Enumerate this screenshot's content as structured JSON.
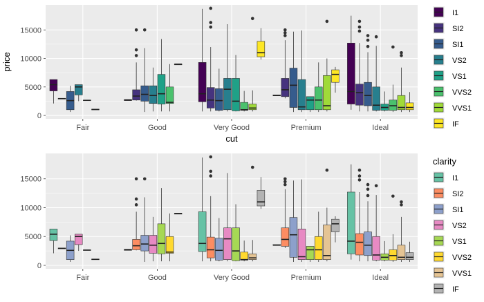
{
  "chart_data": [
    {
      "type": "boxplot",
      "xlabel": "cut",
      "ylabel": "price",
      "categories": [
        "Fair",
        "Good",
        "Very Good",
        "Premium",
        "Ideal"
      ],
      "yticks": [
        0,
        5000,
        10000,
        15000
      ],
      "yticklabels": [
        "0",
        "5000",
        "10000",
        "15000"
      ],
      "ylim": [
        -600,
        19400
      ],
      "grid": true,
      "legend": {
        "title": "",
        "position": "right",
        "entries": [
          "I1",
          "SI2",
          "SI1",
          "VS2",
          "VS1",
          "VVS2",
          "VVS1",
          "IF"
        ]
      },
      "series": [
        {
          "name": "I1",
          "color": "#440154",
          "boxes": [
            {
              "category": "Fair",
              "min": 2100,
              "q1": 4300,
              "median": 5400,
              "q3": 6300,
              "max": 6300,
              "outliers": []
            },
            {
              "category": "Good",
              "min": 2600,
              "q1": 2600,
              "median": 2700,
              "q3": 2800,
              "max": 2800,
              "outliers": []
            },
            {
              "category": "Very Good",
              "min": 700,
              "q1": 2400,
              "median": 3800,
              "q3": 9300,
              "max": 18700,
              "outliers": []
            },
            {
              "category": "Premium",
              "min": 3500,
              "q1": 3500,
              "median": 3500,
              "q3": 3600,
              "max": 3600,
              "outliers": []
            },
            {
              "category": "Ideal",
              "min": 1000,
              "q1": 2000,
              "median": 4200,
              "q3": 12700,
              "max": 17500,
              "outliers": []
            }
          ]
        },
        {
          "name": "SI2",
          "color": "#46337E",
          "boxes": [
            {
              "category": "Fair",
              "min": 2900,
              "q1": 2900,
              "median": 2950,
              "q3": 3000,
              "max": 3000,
              "outliers": []
            },
            {
              "category": "Good",
              "min": 2600,
              "q1": 2700,
              "median": 3400,
              "q3": 4500,
              "max": 9300,
              "outliers": [
                10500,
                11500,
                15000
              ]
            },
            {
              "category": "Very Good",
              "min": 700,
              "q1": 1300,
              "median": 2700,
              "q3": 4900,
              "max": 12000,
              "outliers": [
                15500,
                16300,
                18800
              ]
            },
            {
              "category": "Premium",
              "min": 3000,
              "q1": 3300,
              "median": 4500,
              "q3": 6500,
              "max": 13200,
              "outliers": [
                14000,
                14500,
                15000
              ]
            },
            {
              "category": "Ideal",
              "min": 700,
              "q1": 1800,
              "median": 4000,
              "q3": 5500,
              "max": 12700,
              "outliers": [
                14800,
                15500,
                16500
              ]
            }
          ]
        },
        {
          "name": "SI1",
          "color": "#365C8D",
          "boxes": [
            {
              "category": "Fair",
              "min": 600,
              "q1": 1000,
              "median": 2600,
              "q3": 4200,
              "max": 5200,
              "outliers": []
            },
            {
              "category": "Good",
              "min": 600,
              "q1": 2500,
              "median": 3700,
              "q3": 5200,
              "max": 11800,
              "outliers": [
                15000
              ]
            },
            {
              "category": "Very Good",
              "min": 700,
              "q1": 900,
              "median": 2600,
              "q3": 4700,
              "max": 8200,
              "outliers": []
            },
            {
              "category": "Premium",
              "min": 600,
              "q1": 1400,
              "median": 5300,
              "q3": 8300,
              "max": 14700,
              "outliers": []
            },
            {
              "category": "Ideal",
              "min": 700,
              "q1": 1700,
              "median": 3500,
              "q3": 5800,
              "max": 11100,
              "outliers": [
                12100,
                13200,
                14000
              ]
            }
          ]
        },
        {
          "name": "VS2",
          "color": "#277F8E",
          "boxes": [
            {
              "category": "Fair",
              "min": 2500,
              "q1": 3600,
              "median": 5000,
              "q3": 5400,
              "max": 5400,
              "outliers": []
            },
            {
              "category": "Good",
              "min": 700,
              "q1": 2100,
              "median": 3500,
              "q3": 5200,
              "max": 8400,
              "outliers": []
            },
            {
              "category": "Very Good",
              "min": 700,
              "q1": 1000,
              "median": 4600,
              "q3": 6500,
              "max": 16000,
              "outliers": []
            },
            {
              "category": "Premium",
              "min": 600,
              "q1": 1000,
              "median": 1500,
              "q3": 6300,
              "max": 14900,
              "outliers": []
            },
            {
              "category": "Ideal",
              "min": 700,
              "q1": 900,
              "median": 1800,
              "q3": 5000,
              "max": 12200,
              "outliers": [
                13800
              ]
            }
          ]
        },
        {
          "name": "VS1",
          "color": "#1FA187",
          "boxes": [
            {
              "category": "Fair",
              "min": 2600,
              "q1": 2600,
              "median": 2650,
              "q3": 2700,
              "max": 2700,
              "outliers": []
            },
            {
              "category": "Good",
              "min": 700,
              "q1": 2000,
              "median": 3800,
              "q3": 7200,
              "max": 13400,
              "outliers": []
            },
            {
              "category": "Very Good",
              "min": 700,
              "q1": 800,
              "median": 2500,
              "q3": 6500,
              "max": 10600,
              "outliers": []
            },
            {
              "category": "Premium",
              "min": 600,
              "q1": 1000,
              "median": 2700,
              "q3": 3300,
              "max": 3300,
              "outliers": []
            },
            {
              "category": "Ideal",
              "min": 700,
              "q1": 900,
              "median": 1400,
              "q3": 2000,
              "max": 4200,
              "outliers": []
            }
          ]
        },
        {
          "name": "VVS2",
          "color": "#4AC16D",
          "boxes": [
            {
              "category": "Fair",
              "min": 1000,
              "q1": 1000,
              "median": 1050,
              "q3": 1100,
              "max": 1100,
              "outliers": []
            },
            {
              "category": "Good",
              "min": 700,
              "q1": 2100,
              "median": 2300,
              "q3": 5000,
              "max": 9000,
              "outliers": []
            },
            {
              "category": "Very Good",
              "min": 700,
              "q1": 900,
              "median": 1000,
              "q3": 2300,
              "max": 4300,
              "outliers": []
            },
            {
              "category": "Premium",
              "min": 600,
              "q1": 1000,
              "median": 2700,
              "q3": 5000,
              "max": 9300,
              "outliers": []
            },
            {
              "category": "Ideal",
              "min": 600,
              "q1": 900,
              "median": 1700,
              "q3": 2700,
              "max": 5400,
              "outliers": [
                12000
              ]
            }
          ]
        },
        {
          "name": "VVS1",
          "color": "#A0DA39",
          "boxes": [
            {
              "category": "Good",
              "min": 8900,
              "q1": 8900,
              "median": 9000,
              "q3": 9000,
              "max": 9000,
              "outliers": []
            },
            {
              "category": "Very Good",
              "min": 700,
              "q1": 1000,
              "median": 1300,
              "q3": 2000,
              "max": 4400,
              "outliers": [
                17000
              ]
            },
            {
              "category": "Premium",
              "min": 700,
              "q1": 1000,
              "median": 1700,
              "q3": 7000,
              "max": 10000,
              "outliers": [
                16500
              ]
            },
            {
              "category": "Ideal",
              "min": 600,
              "q1": 1000,
              "median": 1400,
              "q3": 3500,
              "max": 8400,
              "outliers": [
                10500,
                11000
              ]
            }
          ]
        },
        {
          "name": "IF",
          "color": "#FDE725",
          "boxes": [
            {
              "category": "Very Good",
              "min": 9800,
              "q1": 10300,
              "median": 11000,
              "q3": 13000,
              "max": 15300,
              "outliers": []
            },
            {
              "category": "Premium",
              "min": 4000,
              "q1": 5800,
              "median": 7200,
              "q3": 8000,
              "max": 8500,
              "outliers": []
            },
            {
              "category": "Ideal",
              "min": 600,
              "q1": 1000,
              "median": 1400,
              "q3": 2200,
              "max": 4100,
              "outliers": []
            }
          ]
        }
      ]
    },
    {
      "type": "boxplot",
      "xlabel": "",
      "ylabel": "",
      "categories": [
        "Fair",
        "Good",
        "Very Good",
        "Premium",
        "Ideal"
      ],
      "yticks": [
        0,
        5000,
        10000,
        15000
      ],
      "yticklabels": [
        "0",
        "5000",
        "10000",
        "15000"
      ],
      "ylim": [
        -600,
        19400
      ],
      "grid": true,
      "legend": {
        "title": "clarity",
        "position": "right",
        "entries": [
          "I1",
          "SI2",
          "SI1",
          "VS2",
          "VS1",
          "VVS2",
          "VVS1",
          "IF"
        ]
      },
      "series_colors": [
        "#66C2A5",
        "#FC8D62",
        "#8DA0CB",
        "#E78AC3",
        "#A6D854",
        "#FFD92F",
        "#E5C494",
        "#B3B3B3"
      ],
      "same_data_as_panel": 0
    }
  ]
}
